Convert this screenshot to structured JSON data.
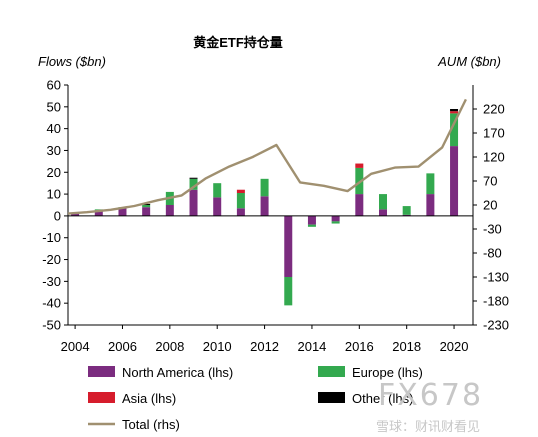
{
  "chart_data": {
    "type": "bar",
    "title": "黄金ETF持仓量",
    "ylabel_left": "Flows ($bn)",
    "ylabel_right": "AUM ($bn)",
    "ylim_left": [
      -50,
      60
    ],
    "yticks_left": [
      -50,
      -40,
      -30,
      -20,
      -10,
      0,
      10,
      20,
      30,
      40,
      50,
      60
    ],
    "ylim_right": [
      -230,
      270
    ],
    "yticks_right": [
      -230,
      -180,
      -130,
      -80,
      -30,
      20,
      70,
      120,
      170,
      220
    ],
    "xlim": [
      2003.7,
      2020.8
    ],
    "xticks": [
      2004,
      2006,
      2008,
      2010,
      2012,
      2014,
      2016,
      2018,
      2020
    ],
    "years": [
      2004,
      2005,
      2006,
      2007,
      2008,
      2009,
      2010,
      2011,
      2012,
      2013,
      2014,
      2015,
      2016,
      2017,
      2018,
      2019,
      2020
    ],
    "series": [
      {
        "name": "North America (lhs)",
        "color": "#7b2c7f",
        "values": [
          1.5,
          2.5,
          3.5,
          4.0,
          5.0,
          12.0,
          8.5,
          3.5,
          9.0,
          -28.0,
          -4.0,
          -2.5,
          10.0,
          3.0,
          0.5,
          10.0,
          32.0
        ]
      },
      {
        "name": "Europe (lhs)",
        "color": "#33a94f",
        "values": [
          0.0,
          0.5,
          0.5,
          1.0,
          6.0,
          5.0,
          6.5,
          7.0,
          8.0,
          -13.0,
          -1.0,
          -1.0,
          12.0,
          7.0,
          4.0,
          9.5,
          15.0
        ]
      },
      {
        "name": "Asia (lhs)",
        "color": "#d61c2c",
        "values": [
          0,
          0,
          0,
          0,
          0,
          0,
          0,
          1.5,
          0,
          0,
          0,
          0,
          2.0,
          0,
          0,
          0,
          1.0
        ]
      },
      {
        "name": "Other (lhs)",
        "color": "#000000",
        "values": [
          0,
          0,
          0,
          0.5,
          0,
          0.5,
          0,
          0,
          0,
          0,
          0,
          0,
          0,
          0,
          0,
          0,
          1.0
        ]
      }
    ],
    "total": {
      "name": "Total (rhs)",
      "color": "#a09070",
      "x": [
        2003.7,
        2004.5,
        2005.5,
        2006.5,
        2007.5,
        2008.5,
        2009.5,
        2010.5,
        2011.5,
        2012.5,
        2013.5,
        2014.5,
        2015.5,
        2016.5,
        2017.5,
        2018.5,
        2019.5,
        2020.5
      ],
      "y": [
        2,
        5,
        10,
        18,
        30,
        40,
        75,
        100,
        120,
        145,
        67,
        60,
        49,
        85,
        98,
        100,
        140,
        240
      ]
    },
    "legend": [
      {
        "name": "North America (lhs)",
        "kind": "box",
        "color": "#7b2c7f"
      },
      {
        "name": "Europe (lhs)",
        "kind": "box",
        "color": "#33a94f"
      },
      {
        "name": "Asia (lhs)",
        "kind": "box",
        "color": "#d61c2c"
      },
      {
        "name": "Other (lhs)",
        "kind": "box",
        "color": "#000000"
      },
      {
        "name": "Total (rhs)",
        "kind": "line",
        "color": "#a09070"
      }
    ]
  },
  "watermark": {
    "brand": "FX678",
    "site": "雪球：财讯财看见"
  }
}
